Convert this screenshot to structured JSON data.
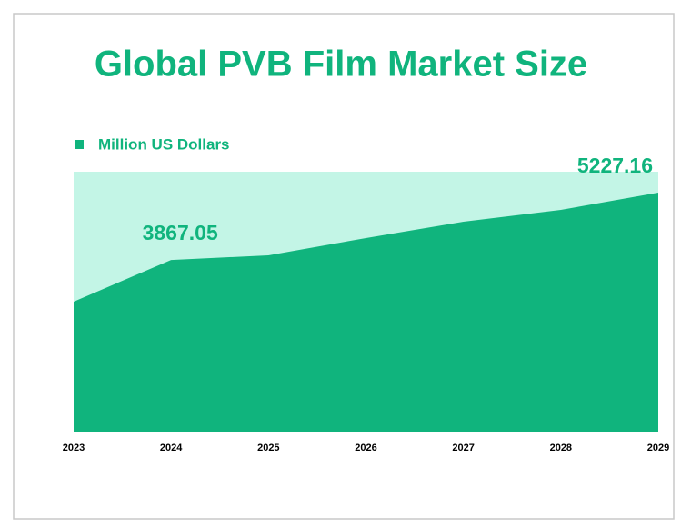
{
  "chart_data": {
    "type": "area",
    "title": "Global PVB Film Market Size",
    "categories": [
      "2023",
      "2024",
      "2025",
      "2026",
      "2027",
      "2028",
      "2029"
    ],
    "series": [
      {
        "name": "Million US Dollars",
        "color": "#10b47d",
        "values": [
          3025,
          3867.05,
          3962,
          4310,
          4641,
          4880,
          5227.16
        ],
        "value_labels": [
          null,
          "3867.05",
          null,
          null,
          null,
          null,
          "5227.16"
        ]
      }
    ],
    "background_color": "#c3f5e6",
    "ylim": [
      400,
      5650
    ]
  }
}
